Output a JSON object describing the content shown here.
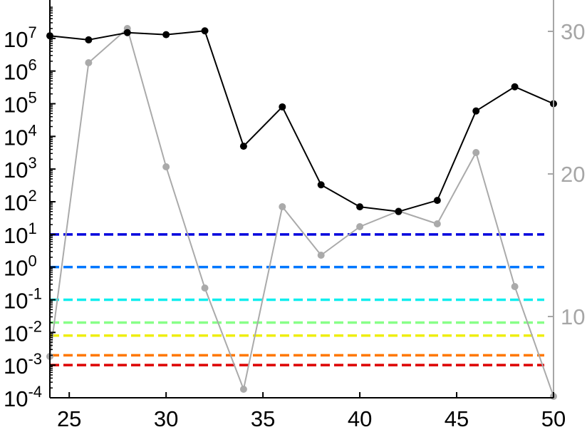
{
  "chart_data": {
    "type": "line",
    "title": "",
    "xlabel": "",
    "ylabel_left": "",
    "ylabel_right": "",
    "x": [
      24,
      26,
      28,
      30,
      32,
      34,
      36,
      38,
      40,
      42,
      44,
      46,
      48,
      50
    ],
    "xlim": [
      24,
      50
    ],
    "xticks": [
      25,
      30,
      35,
      40,
      45,
      50
    ],
    "y_left": {
      "scale": "log",
      "lim": [
        0.0001,
        100000000
      ],
      "ticks": [
        {
          "exp": "7",
          "value": 10000000
        },
        {
          "exp": "6",
          "value": 1000000
        },
        {
          "exp": "5",
          "value": 100000
        },
        {
          "exp": "4",
          "value": 10000
        },
        {
          "exp": "3",
          "value": 1000
        },
        {
          "exp": "2",
          "value": 100
        },
        {
          "exp": "1",
          "value": 10
        },
        {
          "exp": "0",
          "value": 1
        },
        {
          "exp": "-1",
          "value": 0.1
        },
        {
          "exp": "-2",
          "value": 0.01
        },
        {
          "exp": "-3",
          "value": 0.001
        },
        {
          "exp": "-4",
          "value": 0.0001
        }
      ]
    },
    "y_right": {
      "scale": "linear",
      "lim": [
        4.3,
        31.8
      ],
      "ticks": [
        10,
        20,
        30
      ]
    },
    "series": [
      {
        "axis": "left",
        "color": "#000000",
        "values": [
          12000000,
          9000000,
          15000000,
          13000000,
          17000000,
          5000,
          80000,
          330,
          70,
          50,
          110,
          60000,
          330000,
          100000
        ]
      },
      {
        "axis": "right",
        "color": "#aaaaaa",
        "values": [
          7.2,
          27.8,
          30.2,
          20.5,
          12.0,
          4.9,
          17.7,
          14.3,
          16.3,
          17.4,
          16.5,
          21.5,
          12.1,
          4.4
        ]
      }
    ],
    "reference_lines": [
      {
        "value": 10,
        "color": "#0000dd"
      },
      {
        "value": 1,
        "color": "#0077ff"
      },
      {
        "value": 0.1,
        "color": "#11eeee"
      },
      {
        "value": 0.02,
        "color": "#88ff88"
      },
      {
        "value": 0.008,
        "color": "#eeee11"
      },
      {
        "value": 0.002,
        "color": "#ff7700"
      },
      {
        "value": 0.001,
        "color": "#dd0000"
      }
    ],
    "grid": false,
    "legend": "none"
  }
}
